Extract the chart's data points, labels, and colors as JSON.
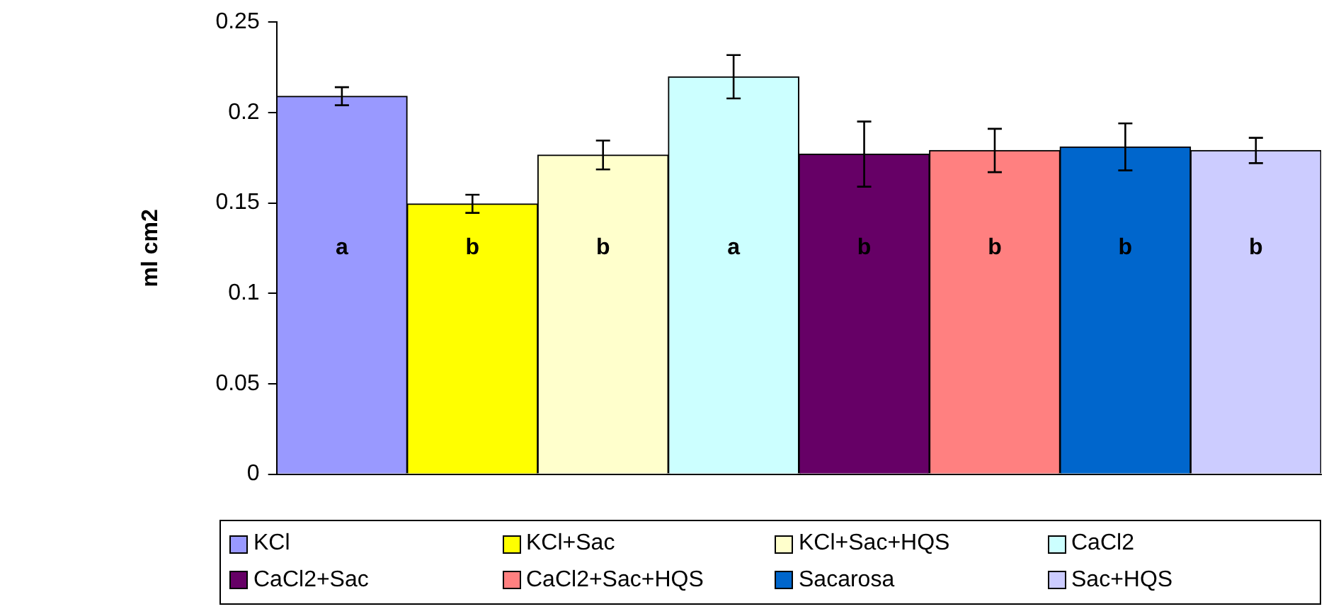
{
  "chart_data": {
    "type": "bar",
    "ylabel": "ml cm2",
    "categories": [
      null
    ],
    "series": [
      {
        "name": "KCl",
        "color": "#9999ff",
        "values": [
          0.209
        ],
        "errors": [
          0.005
        ]
      },
      {
        "name": "KCl+Sac",
        "color": "#ffff00",
        "values": [
          0.1495
        ],
        "errors": [
          0.005
        ]
      },
      {
        "name": "KCl+Sac+HQS",
        "color": "#ffffcc",
        "values": [
          0.1765
        ],
        "errors": [
          0.008
        ]
      },
      {
        "name": "CaCl2",
        "color": "#ccffff",
        "values": [
          0.2198
        ],
        "errors": [
          0.012
        ]
      },
      {
        "name": "CaCl2+Sac",
        "color": "#660066",
        "values": [
          0.177
        ],
        "errors": [
          0.018
        ]
      },
      {
        "name": "CaCl2+Sac+HQS",
        "color": "#ff8080",
        "values": [
          0.179
        ],
        "errors": [
          0.012
        ]
      },
      {
        "name": "Sacarosa",
        "color": "#0066cc",
        "values": [
          0.181
        ],
        "errors": [
          0.013
        ]
      },
      {
        "name": "Sac+HQS",
        "color": "#ccccff",
        "values": [
          0.179
        ],
        "errors": [
          0.007
        ]
      }
    ],
    "annotations": [
      "a",
      "b",
      "b",
      "a",
      "b",
      "b",
      "b",
      "b"
    ],
    "ylim": [
      0,
      0.25
    ],
    "yticks": [
      0,
      0.05,
      0.1,
      0.15,
      0.2,
      0.25
    ],
    "grid": false,
    "legend": "bottom"
  }
}
